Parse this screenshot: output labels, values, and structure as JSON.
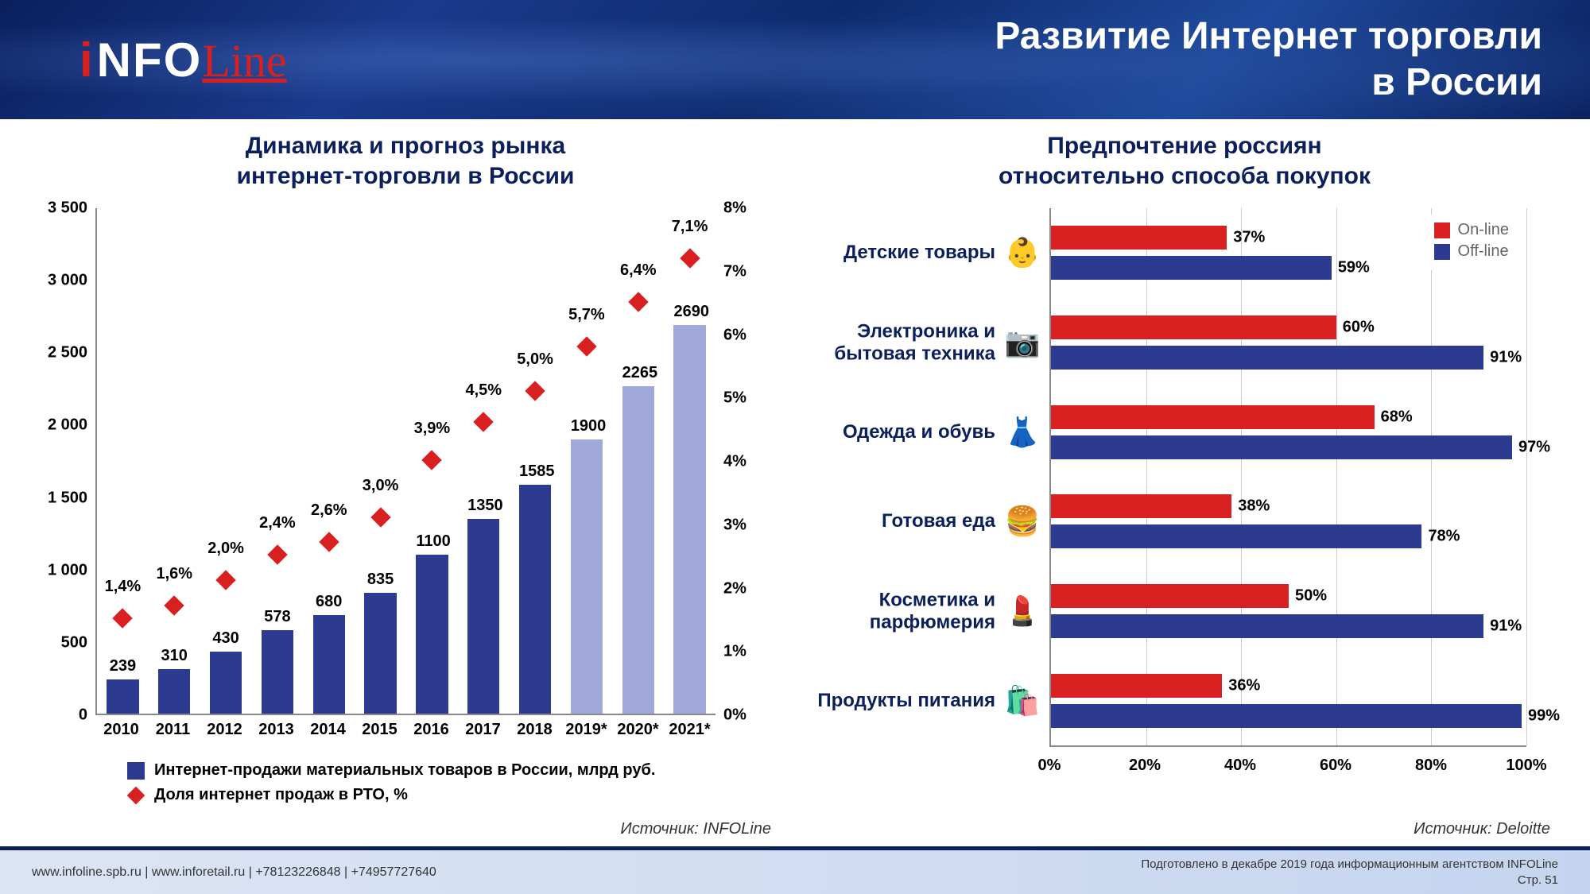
{
  "header": {
    "logo_i": "i",
    "logo_nfo": "NFO",
    "logo_line": "Line",
    "title_line1": "Развитие Интернет торговли",
    "title_line2": "в России"
  },
  "left_chart": {
    "title_line1": "Динамика и прогноз рынка",
    "title_line2": "интернет-торговли в России",
    "type": "combo-bar-line",
    "y_left": {
      "min": 0,
      "max": 3500,
      "step": 500,
      "ticks": [
        "0",
        "500",
        "1 000",
        "1 500",
        "2 000",
        "2 500",
        "3 000",
        "3 500"
      ]
    },
    "y_right": {
      "min": 0,
      "max": 8,
      "step": 1,
      "ticks": [
        "0%",
        "1%",
        "2%",
        "3%",
        "4%",
        "5%",
        "6%",
        "7%",
        "8%"
      ]
    },
    "categories": [
      "2010",
      "2011",
      "2012",
      "2013",
      "2014",
      "2015",
      "2016",
      "2017",
      "2018",
      "2019*",
      "2020*",
      "2021*"
    ],
    "bars": {
      "values": [
        239,
        310,
        430,
        578,
        680,
        835,
        1100,
        1350,
        1585,
        1900,
        2265,
        2690
      ],
      "labels": [
        "239",
        "310",
        "430",
        "578",
        "680",
        "835",
        "1100",
        "1350",
        "1585",
        "1900",
        "2265",
        "2690"
      ],
      "colors": [
        "#2c3a8f",
        "#2c3a8f",
        "#2c3a8f",
        "#2c3a8f",
        "#2c3a8f",
        "#2c3a8f",
        "#2c3a8f",
        "#2c3a8f",
        "#2c3a8f",
        "#9fa8d8",
        "#9fa8d8",
        "#9fa8d8"
      ],
      "bar_width_frac": 0.62
    },
    "markers": {
      "values_pct": [
        1.4,
        1.6,
        2.0,
        2.4,
        2.6,
        3.0,
        3.9,
        4.5,
        5.0,
        5.7,
        6.4,
        7.1
      ],
      "labels": [
        "1,4%",
        "1,6%",
        "2,0%",
        "2,4%",
        "2,6%",
        "3,0%",
        "3,9%",
        "4,5%",
        "5,0%",
        "5,7%",
        "6,4%",
        "7,1%"
      ],
      "color": "#d92020"
    },
    "legend": {
      "bar_label": "Интернет-продажи материальных товаров в России, млрд руб.",
      "bar_color": "#2c3a8f",
      "marker_label": "Доля интернет продаж в РТО, %",
      "marker_color": "#d92020"
    },
    "source": "Источник: INFOLine"
  },
  "right_chart": {
    "title_line1": "Предпочтение россиян",
    "title_line2": "относительно способа покупок",
    "type": "grouped-horizontal-bar",
    "x": {
      "min": 0,
      "max": 100,
      "step": 20,
      "ticks": [
        "0%",
        "20%",
        "40%",
        "60%",
        "80%",
        "100%"
      ]
    },
    "series": {
      "online": {
        "label": "On-line",
        "color": "#d92020"
      },
      "offline": {
        "label": "Off-line",
        "color": "#2c3a8f"
      }
    },
    "categories": [
      {
        "label": "Детские товары",
        "icon": "👶",
        "icon_color": "#f0b000",
        "online": 37,
        "offline": 59
      },
      {
        "label": "Электроника и бытовая техника",
        "icon": "📷",
        "icon_color": "#333",
        "online": 60,
        "offline": 91
      },
      {
        "label": "Одежда и обувь",
        "icon": "👗",
        "icon_color": "#d92020",
        "online": 68,
        "offline": 97
      },
      {
        "label": "Готовая еда",
        "icon": "🍔",
        "icon_color": "#8b5a2b",
        "online": 38,
        "offline": 78
      },
      {
        "label": "Косметика и парфюмерия",
        "icon": "💄",
        "icon_color": "#333",
        "online": 50,
        "offline": 91
      },
      {
        "label": "Продукты питания",
        "icon": "🛍️",
        "icon_color": "#8b5a2b",
        "online": 36,
        "offline": 99
      }
    ],
    "source": "Источник: Deloitte"
  },
  "footer": {
    "left": "www.infoline.spb.ru | www.inforetail.ru | +78123226848 | +74957727640",
    "right_line1": "Подготовлено в декабре 2019 года информационным агентством INFOLine",
    "right_line2": "Стр. 51"
  },
  "colors": {
    "header_text": "#ffffff",
    "title_text": "#0a1f5c",
    "axis": "#888",
    "grid": "#ccc"
  }
}
